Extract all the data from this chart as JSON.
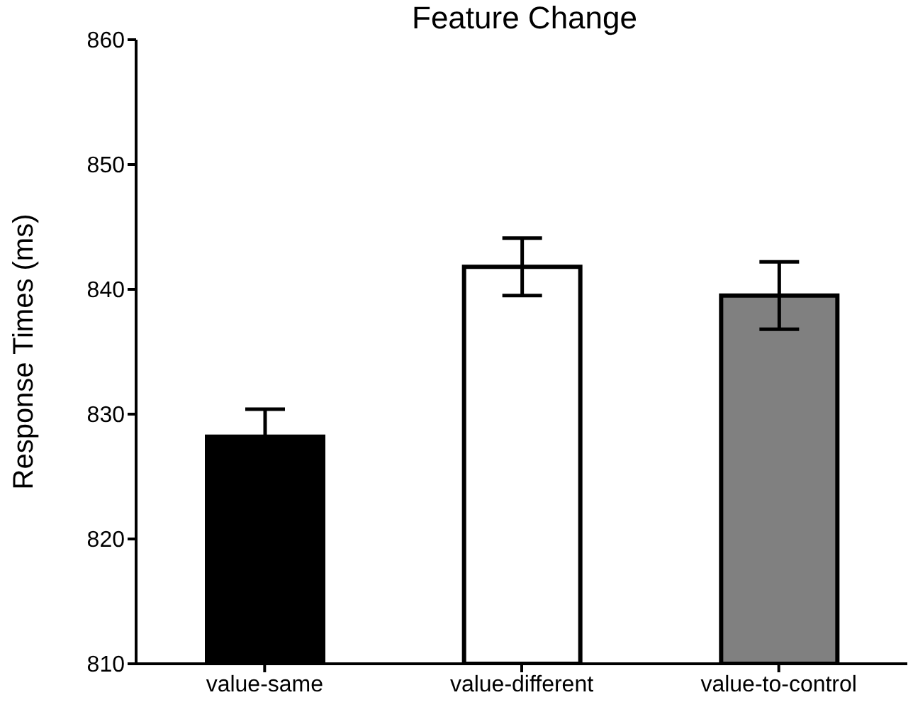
{
  "chart_data": {
    "type": "bar",
    "title": "Feature Change",
    "ylabel": "Response Times (ms)",
    "categories": [
      "value-same",
      "value-different",
      "value-to-control"
    ],
    "values": [
      828.2,
      841.8,
      839.5
    ],
    "errors": [
      2.2,
      2.3,
      2.7
    ],
    "colors": [
      "#000000",
      "#ffffff",
      "#808080"
    ],
    "ylim": [
      810,
      860
    ],
    "yticks": [
      810,
      820,
      830,
      840,
      850,
      860
    ],
    "grid": false,
    "legend": false
  }
}
